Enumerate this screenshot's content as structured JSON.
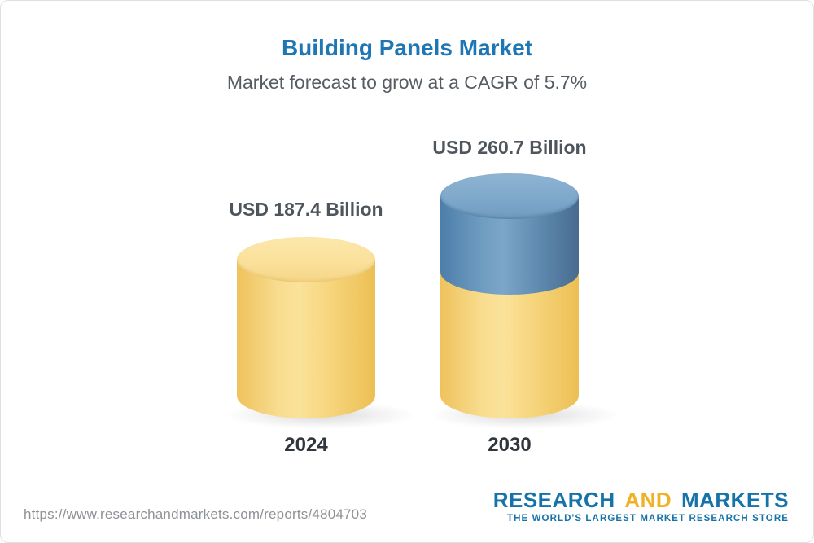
{
  "chart_data": {
    "type": "bar",
    "bar_style": "3d-cylinder",
    "categories": [
      "2024",
      "2030"
    ],
    "values": [
      187.4,
      260.7
    ],
    "unit": "USD Billion",
    "data_labels": [
      "USD 187.4 Billion",
      "USD 260.7 Billion"
    ],
    "title": "Building Panels Market",
    "subtitle": "Market forecast to grow at a CAGR of 5.7%",
    "cagr_pct": 5.7,
    "xlabel": "",
    "ylabel": "",
    "grid": false,
    "legend": "none",
    "colors": {
      "title": "#1F76B5",
      "base_bar": "#F5CE6E",
      "growth_segment": "#5E8CB4",
      "label_text": "#4E555C"
    }
  },
  "footer": {
    "source_url": "https://www.researchandmarkets.com/reports/4804703",
    "logo": {
      "research": "RESEARCH",
      "and": "AND",
      "markets": "MARKETS",
      "tagline": "THE WORLD'S LARGEST MARKET RESEARCH STORE"
    }
  }
}
